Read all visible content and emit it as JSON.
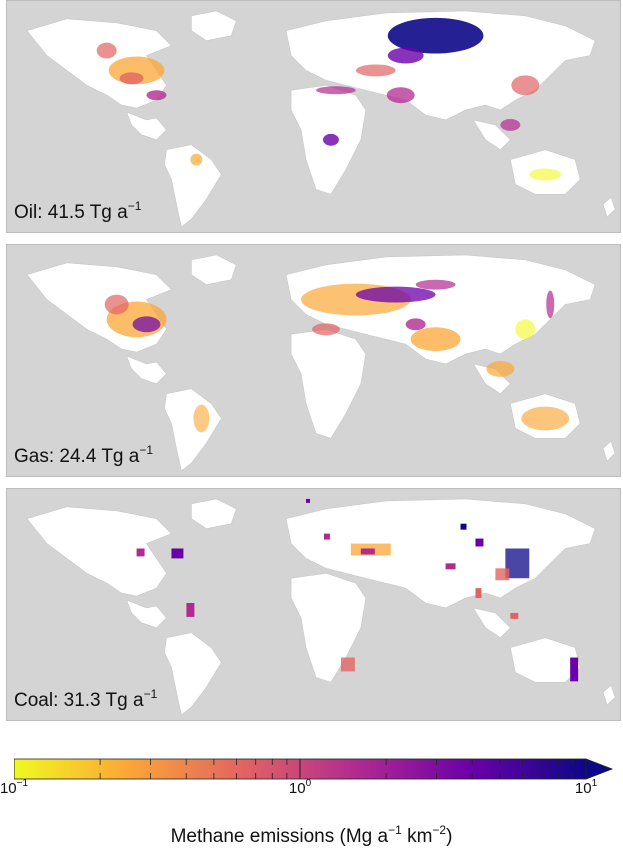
{
  "panels": [
    {
      "id": "oil",
      "label_main": "Oil: 41.5 Tg a",
      "label_exp": "−1"
    },
    {
      "id": "gas",
      "label_main": "Gas: 24.4 Tg a",
      "label_exp": "−1"
    },
    {
      "id": "coal",
      "label_main": "Coal: 31.3 Tg a",
      "label_exp": "−1"
    }
  ],
  "colorbar": {
    "title_main": "Methane emissions (Mg a",
    "title_exp1": "−1",
    "title_mid": " km",
    "title_exp2": "−2",
    "title_end": ")",
    "ticks": [
      {
        "base": "10",
        "exp": "−1",
        "frac": 0.0
      },
      {
        "base": "10",
        "exp": "0",
        "frac": 0.5
      },
      {
        "base": "10",
        "exp": "1",
        "frac": 1.0
      }
    ],
    "scale": "log",
    "range": [
      0.1,
      10
    ],
    "colors": [
      "#f0f921",
      "#fca636",
      "#e16462",
      "#b12a90",
      "#6a00a8",
      "#0d0887"
    ],
    "extend": "max"
  },
  "colors": {
    "ocean": "#d4d4d4",
    "land": "#ffffff",
    "borders": "#c8c8c8"
  }
}
